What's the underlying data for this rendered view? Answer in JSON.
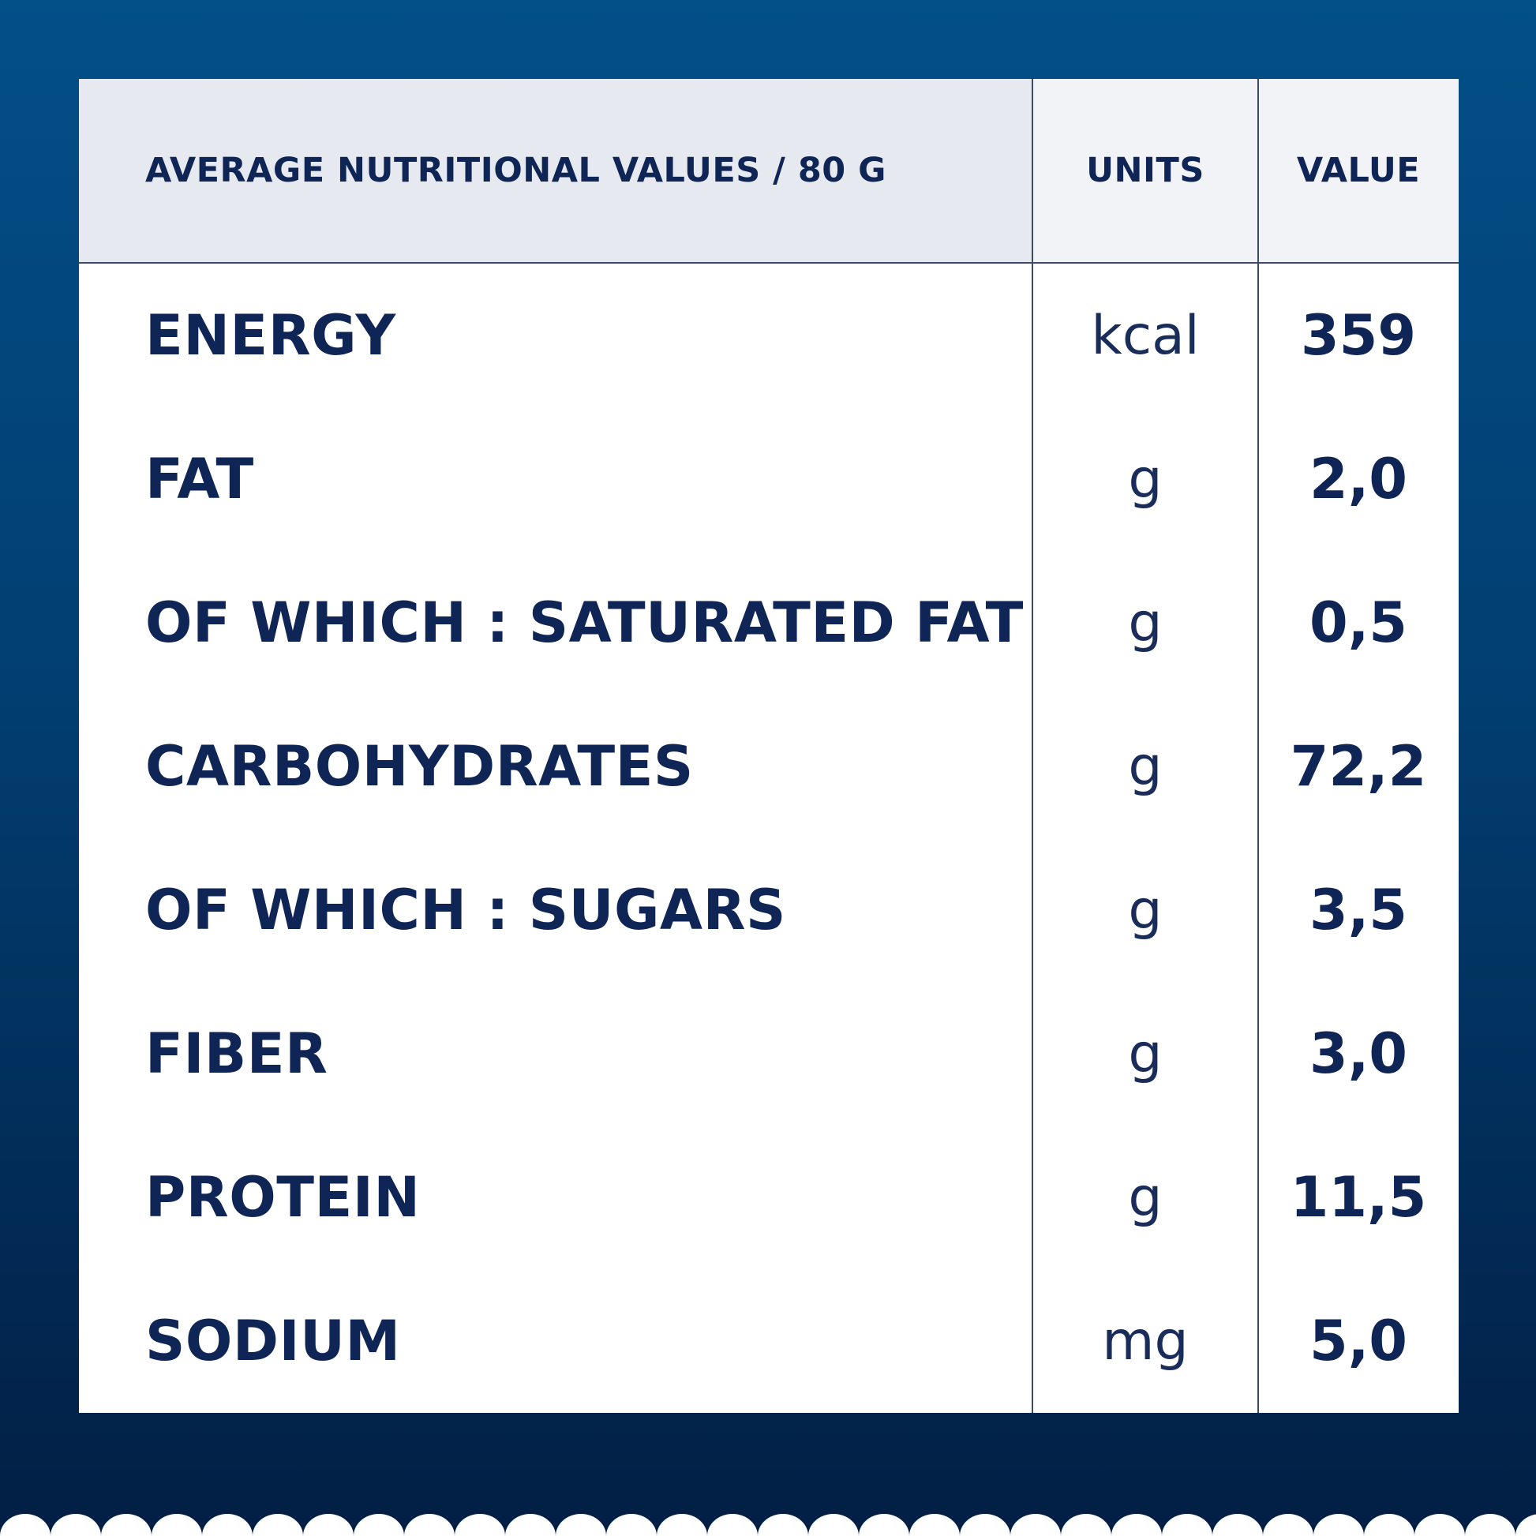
{
  "header": {
    "nutrient": "AVERAGE NUTRITIONAL VALUES / 80 G",
    "units": "UNITS",
    "value": "VALUE"
  },
  "rows": [
    {
      "name": "ENERGY",
      "unit": "kcal",
      "value": "359"
    },
    {
      "name": "FAT",
      "unit": "g",
      "value": "2,0"
    },
    {
      "name": "OF WHICH : SATURATED FAT",
      "unit": "g",
      "value": "0,5"
    },
    {
      "name": "CARBOHYDRATES",
      "unit": "g",
      "value": "72,2"
    },
    {
      "name": "OF WHICH : SUGARS",
      "unit": "g",
      "value": "3,5"
    },
    {
      "name": "FIBER",
      "unit": "g",
      "value": "3,0"
    },
    {
      "name": "PROTEIN",
      "unit": "g",
      "value": "11,5"
    },
    {
      "name": "SODIUM",
      "unit": "mg",
      "value": "5,0"
    }
  ],
  "colors": {
    "background_top": "#034f88",
    "background_bottom": "#021f44",
    "text": "#0f2555",
    "header_bg": "#e6e9ef"
  }
}
